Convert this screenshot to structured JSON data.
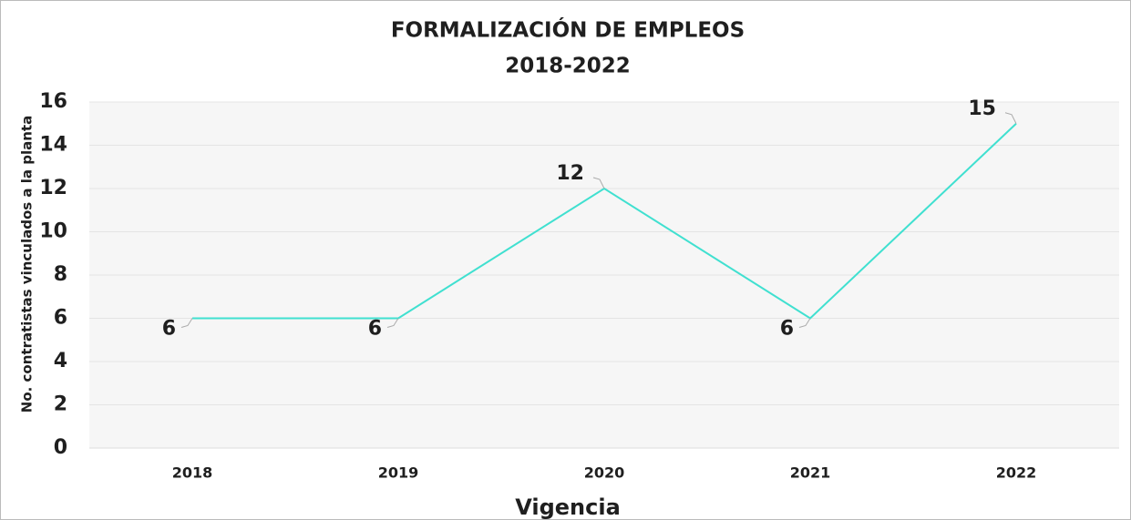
{
  "chart_data": {
    "type": "line",
    "title": "FORMALIZACIÓN DE EMPLEOS",
    "subtitle": "2018-2022",
    "x_label": "Vigencia",
    "y_label": "No. contratistas vinculados a la planta",
    "categories": [
      "2018",
      "2019",
      "2020",
      "2021",
      "2022"
    ],
    "values": [
      6,
      6,
      12,
      6,
      15
    ],
    "color": "#40e0d0",
    "ylim": [
      0,
      16
    ],
    "yticks": [
      0,
      2,
      4,
      6,
      8,
      10,
      12,
      14,
      16
    ],
    "grid": true
  }
}
